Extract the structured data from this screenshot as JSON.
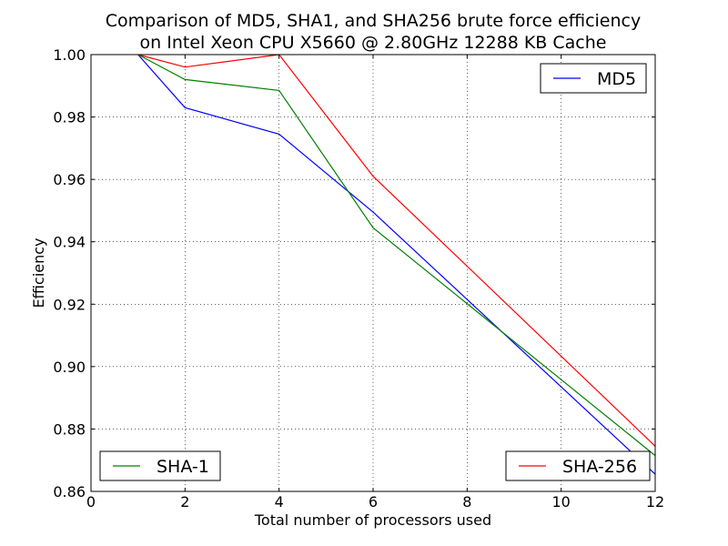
{
  "chart_data": {
    "type": "line",
    "title_line1": "Comparison of MD5, SHA1, and SHA256 brute force efficiency",
    "title_line2": "on Intel Xeon CPU X5660 @ 2.80GHz 12288 KB Cache",
    "xlabel": "Total number of processors used",
    "ylabel": "Efficiency",
    "xlim": [
      0,
      12
    ],
    "ylim": [
      0.86,
      1.0
    ],
    "xticks": [
      0,
      2,
      4,
      6,
      8,
      10,
      12
    ],
    "xtick_labels": [
      "0",
      "2",
      "4",
      "6",
      "8",
      "10",
      "12"
    ],
    "yticks": [
      0.86,
      0.88,
      0.9,
      0.92,
      0.94,
      0.96,
      0.98,
      1.0
    ],
    "ytick_labels": [
      "0.86",
      "0.88",
      "0.90",
      "0.92",
      "0.94",
      "0.96",
      "0.98",
      "1.00"
    ],
    "grid": true,
    "x": [
      1,
      2,
      4,
      6,
      12
    ],
    "series": [
      {
        "name": "MD5",
        "color": "#0000ff",
        "values": [
          1.0,
          0.983,
          0.9745,
          0.9495,
          0.8655
        ],
        "legend_position": "upper-right"
      },
      {
        "name": "SHA-1",
        "color": "#008000",
        "values": [
          1.0,
          0.992,
          0.9885,
          0.9445,
          0.8715
        ],
        "legend_position": "lower-left"
      },
      {
        "name": "SHA-256",
        "color": "#ff0000",
        "values": [
          1.0,
          0.996,
          1.0,
          0.961,
          0.8745
        ],
        "legend_position": "lower-right"
      }
    ]
  }
}
